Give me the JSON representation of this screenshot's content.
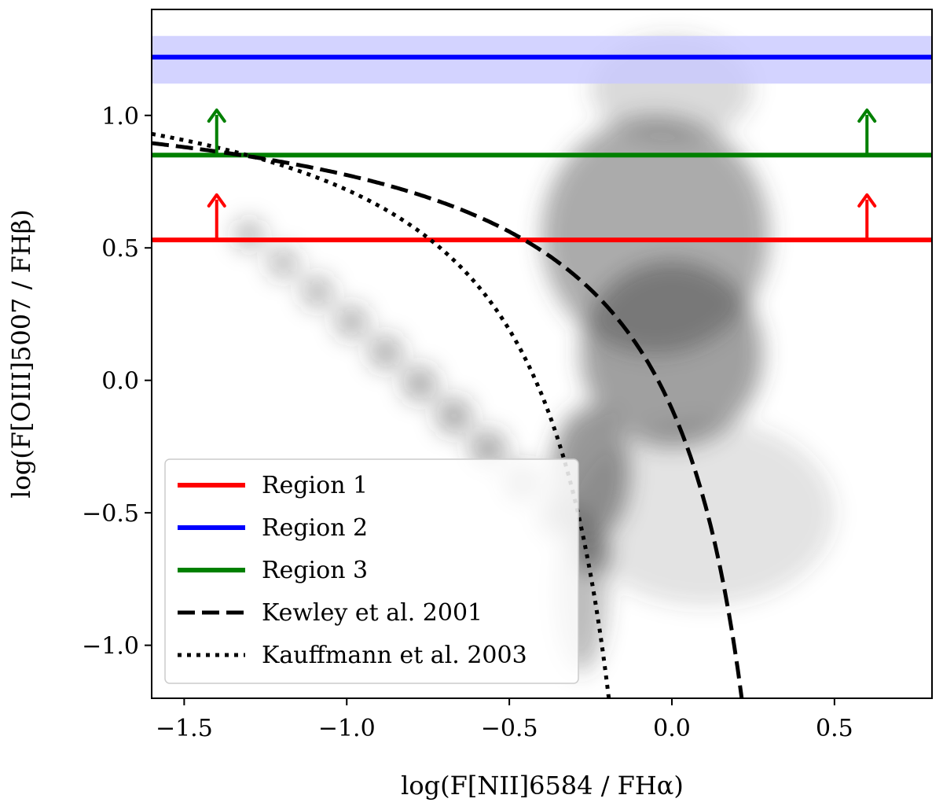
{
  "chart_data": {
    "type": "scatter",
    "title": "",
    "xlabel": "log(F[NII]6584 / FHα)",
    "ylabel": "log(F[OIII]5007 / FHβ)",
    "xlim": [
      -1.6,
      0.8
    ],
    "ylim": [
      -1.2,
      1.4
    ],
    "xticks": [
      -1.5,
      -1.0,
      -0.5,
      0.0,
      0.5
    ],
    "yticks": [
      -1.0,
      -0.5,
      0.0,
      0.5,
      1.0
    ],
    "xtick_labels": [
      "−1.5",
      "−1.0",
      "−0.5",
      "0.0",
      "0.5"
    ],
    "ytick_labels": [
      "−1.0",
      "−0.5",
      "0.0",
      "0.5",
      "1.0"
    ],
    "grid": false,
    "legend_position": "bottom-left",
    "background_density": "grey 2D histogram of galaxy line ratios",
    "regions": [
      {
        "name": "Region 1",
        "color": "#ff0000",
        "y": 0.53,
        "band": null,
        "arrows_x": [
          -1.4,
          0.6
        ],
        "arrow_top": 0.7
      },
      {
        "name": "Region 2",
        "color": "#0000ff",
        "y": 1.22,
        "band": [
          1.12,
          1.3
        ],
        "band_color": "#c8c8ff",
        "arrows_x": [],
        "arrow_top": null
      },
      {
        "name": "Region 3",
        "color": "#008000",
        "y": 0.85,
        "band": null,
        "arrows_x": [
          -1.4,
          0.6
        ],
        "arrow_top": 1.02
      }
    ],
    "curves": [
      {
        "name": "Kewley et al. 2001",
        "style": "dashed",
        "formula": "0.61/(x-0.47)+1.19",
        "x_max": 0.47
      },
      {
        "name": "Kauffmann et al. 2003",
        "style": "dotted",
        "formula": "0.61/(x-0.05)+1.3",
        "x_max": 0.05
      }
    ],
    "legend": [
      "Region 1",
      "Region 2",
      "Region 3",
      "Kewley et al. 2001",
      "Kauffmann et al. 2003"
    ]
  }
}
